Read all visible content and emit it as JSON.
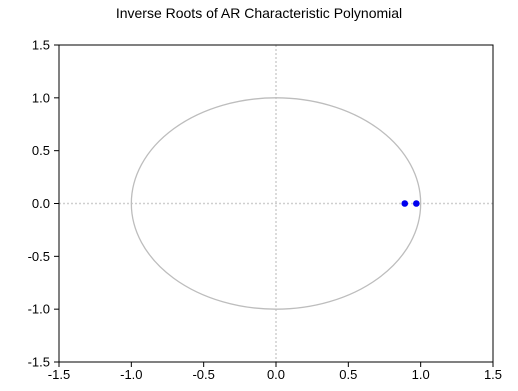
{
  "chart_data": {
    "type": "scatter",
    "title": "Inverse Roots of AR Characteristic Polynomial",
    "xlim": [
      -1.5,
      1.5
    ],
    "ylim": [
      -1.5,
      1.5
    ],
    "x_ticks": [
      "-1.5",
      "-1.0",
      "-0.5",
      "0.0",
      "0.5",
      "1.0",
      "1.5"
    ],
    "y_ticks": [
      "1.5",
      "1.0",
      "0.5",
      "0.0",
      "-0.5",
      "-1.0",
      "-1.5"
    ],
    "x_tick_values": [
      -1.5,
      -1.0,
      -0.5,
      0.0,
      0.5,
      1.0,
      1.5
    ],
    "y_tick_values": [
      1.5,
      1.0,
      0.5,
      0.0,
      -0.5,
      -1.0,
      -1.5
    ],
    "unit_circle": {
      "radius": 1.0,
      "color": "#bdbdbd"
    },
    "reference_lines": {
      "x": 0.0,
      "y": 0.0,
      "style": "dotted",
      "color": "#cfcfcf"
    },
    "points": [
      {
        "x": 0.89,
        "y": 0.0
      },
      {
        "x": 0.97,
        "y": 0.0
      }
    ],
    "point_color": "#0000ee",
    "grid": false,
    "legend": "none"
  }
}
